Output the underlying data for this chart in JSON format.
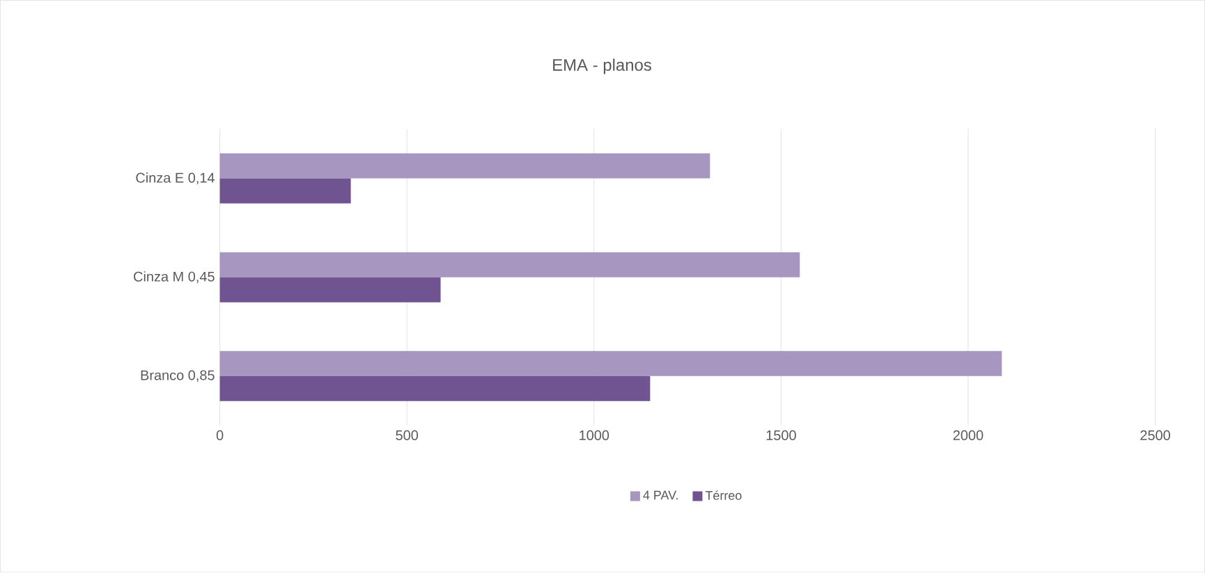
{
  "chart_data": {
    "type": "bar",
    "orientation": "horizontal",
    "title": "EMA - planos",
    "categories": [
      "Cinza E 0,14",
      "Cinza M 0,45",
      "Branco 0,85"
    ],
    "series": [
      {
        "name": "4 PAV.",
        "color": "#a797c0",
        "values": [
          1310,
          1550,
          2090
        ]
      },
      {
        "name": "Térreo",
        "color": "#6f5491",
        "values": [
          350,
          590,
          1150
        ]
      }
    ],
    "xlim": [
      0,
      2500
    ],
    "xticks": [
      0,
      500,
      1000,
      1500,
      2000,
      2500
    ],
    "grid": "x",
    "legend": "bottom"
  }
}
